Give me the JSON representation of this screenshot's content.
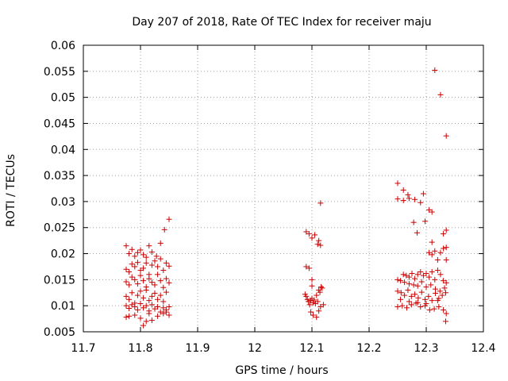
{
  "chart_data": {
    "type": "scatter",
    "title": "Day 207 of 2018, Rate Of TEC Index for receiver maju",
    "xlabel": "GPS time / hours",
    "ylabel": "ROTI / TECUs",
    "xlim": [
      11.7,
      12.4
    ],
    "ylim": [
      0.005,
      0.06
    ],
    "xticks": [
      11.7,
      11.8,
      11.9,
      12.0,
      12.1,
      12.2,
      12.3,
      12.4
    ],
    "xtick_labels": [
      "11.7",
      "11.8",
      "11.9",
      "12",
      "12.1",
      "12.2",
      "12.3",
      "12.4"
    ],
    "yticks": [
      0.005,
      0.01,
      0.015,
      0.02,
      0.025,
      0.03,
      0.035,
      0.04,
      0.045,
      0.05,
      0.055,
      0.06
    ],
    "ytick_labels": [
      "0.005",
      "0.01",
      "0.015",
      "0.02",
      "0.025",
      "0.03",
      "0.035",
      "0.04",
      "0.045",
      "0.05",
      "0.055",
      "0.06"
    ],
    "grid": true,
    "marker": "+",
    "marker_color": "#cc0000",
    "series": [
      {
        "name": "ROTI",
        "points": [
          [
            11.775,
            0.0215
          ],
          [
            11.78,
            0.02
          ],
          [
            11.785,
            0.0208
          ],
          [
            11.79,
            0.0195
          ],
          [
            11.795,
            0.0202
          ],
          [
            11.8,
            0.0207
          ],
          [
            11.805,
            0.0198
          ],
          [
            11.81,
            0.0193
          ],
          [
            11.815,
            0.0215
          ],
          [
            11.82,
            0.0203
          ],
          [
            11.828,
            0.0195
          ],
          [
            11.835,
            0.022
          ],
          [
            11.842,
            0.0246
          ],
          [
            11.85,
            0.0266
          ],
          [
            11.775,
            0.017
          ],
          [
            11.78,
            0.0165
          ],
          [
            11.785,
            0.018
          ],
          [
            11.79,
            0.0175
          ],
          [
            11.795,
            0.0183
          ],
          [
            11.8,
            0.0168
          ],
          [
            11.805,
            0.0172
          ],
          [
            11.81,
            0.0182
          ],
          [
            11.815,
            0.016
          ],
          [
            11.82,
            0.0178
          ],
          [
            11.825,
            0.0186
          ],
          [
            11.83,
            0.0175
          ],
          [
            11.835,
            0.019
          ],
          [
            11.84,
            0.0168
          ],
          [
            11.845,
            0.0182
          ],
          [
            11.85,
            0.0176
          ],
          [
            11.775,
            0.0146
          ],
          [
            11.78,
            0.014
          ],
          [
            11.785,
            0.0155
          ],
          [
            11.79,
            0.015
          ],
          [
            11.795,
            0.0142
          ],
          [
            11.8,
            0.0158
          ],
          [
            11.805,
            0.0148
          ],
          [
            11.81,
            0.0136
          ],
          [
            11.815,
            0.0152
          ],
          [
            11.82,
            0.0145
          ],
          [
            11.825,
            0.014
          ],
          [
            11.83,
            0.016
          ],
          [
            11.835,
            0.0148
          ],
          [
            11.84,
            0.0135
          ],
          [
            11.845,
            0.0152
          ],
          [
            11.85,
            0.0144
          ],
          [
            11.775,
            0.0118
          ],
          [
            11.78,
            0.0112
          ],
          [
            11.785,
            0.0125
          ],
          [
            11.79,
            0.0105
          ],
          [
            11.795,
            0.012
          ],
          [
            11.8,
            0.0128
          ],
          [
            11.805,
            0.0115
          ],
          [
            11.81,
            0.013
          ],
          [
            11.815,
            0.011
          ],
          [
            11.82,
            0.0118
          ],
          [
            11.825,
            0.0124
          ],
          [
            11.83,
            0.0112
          ],
          [
            11.835,
            0.012
          ],
          [
            11.84,
            0.0108
          ],
          [
            11.845,
            0.0126
          ],
          [
            11.775,
            0.01
          ],
          [
            11.78,
            0.0095
          ],
          [
            11.785,
            0.0102
          ],
          [
            11.79,
            0.0098
          ],
          [
            11.795,
            0.0092
          ],
          [
            11.8,
            0.0104
          ],
          [
            11.805,
            0.0096
          ],
          [
            11.81,
            0.01
          ],
          [
            11.815,
            0.009
          ],
          [
            11.82,
            0.0102
          ],
          [
            11.825,
            0.0094
          ],
          [
            11.83,
            0.0098
          ],
          [
            11.835,
            0.0088
          ],
          [
            11.84,
            0.0096
          ],
          [
            11.845,
            0.0092
          ],
          [
            11.85,
            0.0098
          ],
          [
            11.775,
            0.0078
          ],
          [
            11.78,
            0.008
          ],
          [
            11.79,
            0.0082
          ],
          [
            11.8,
            0.0076
          ],
          [
            11.805,
            0.0062
          ],
          [
            11.81,
            0.007
          ],
          [
            11.815,
            0.0085
          ],
          [
            11.82,
            0.0072
          ],
          [
            11.83,
            0.008
          ],
          [
            11.84,
            0.0085
          ],
          [
            11.845,
            0.0088
          ],
          [
            11.85,
            0.0082
          ],
          [
            12.09,
            0.0242
          ],
          [
            12.095,
            0.0238
          ],
          [
            12.1,
            0.023
          ],
          [
            12.105,
            0.0236
          ],
          [
            12.11,
            0.0218
          ],
          [
            12.112,
            0.0225
          ],
          [
            12.115,
            0.0216
          ],
          [
            12.115,
            0.0297
          ],
          [
            12.09,
            0.0175
          ],
          [
            12.095,
            0.0172
          ],
          [
            12.1,
            0.015
          ],
          [
            12.1,
            0.0138
          ],
          [
            12.088,
            0.0122
          ],
          [
            12.09,
            0.0118
          ],
          [
            12.092,
            0.0112
          ],
          [
            12.094,
            0.0108
          ],
          [
            12.096,
            0.0102
          ],
          [
            12.098,
            0.011
          ],
          [
            12.1,
            0.0114
          ],
          [
            12.102,
            0.0106
          ],
          [
            12.104,
            0.0111
          ],
          [
            12.106,
            0.0104
          ],
          [
            12.108,
            0.012
          ],
          [
            12.11,
            0.0108
          ],
          [
            12.112,
            0.013
          ],
          [
            12.114,
            0.0126
          ],
          [
            12.116,
            0.0136
          ],
          [
            12.118,
            0.0134
          ],
          [
            12.12,
            0.0102
          ],
          [
            12.115,
            0.0098
          ],
          [
            12.098,
            0.0088
          ],
          [
            12.102,
            0.0082
          ],
          [
            12.108,
            0.0078
          ],
          [
            12.112,
            0.009
          ],
          [
            12.25,
            0.0335
          ],
          [
            12.26,
            0.0322
          ],
          [
            12.268,
            0.0313
          ],
          [
            12.25,
            0.0305
          ],
          [
            12.26,
            0.0302
          ],
          [
            12.27,
            0.0306
          ],
          [
            12.28,
            0.0304
          ],
          [
            12.29,
            0.0298
          ],
          [
            12.295,
            0.0315
          ],
          [
            12.305,
            0.0284
          ],
          [
            12.31,
            0.028
          ],
          [
            12.315,
            0.0552
          ],
          [
            12.325,
            0.0505
          ],
          [
            12.335,
            0.0426
          ],
          [
            12.278,
            0.026
          ],
          [
            12.284,
            0.024
          ],
          [
            12.298,
            0.0262
          ],
          [
            12.33,
            0.0238
          ],
          [
            12.335,
            0.0245
          ],
          [
            12.31,
            0.0222
          ],
          [
            12.305,
            0.0202
          ],
          [
            12.31,
            0.0198
          ],
          [
            12.315,
            0.0205
          ],
          [
            12.325,
            0.0202
          ],
          [
            12.33,
            0.021
          ],
          [
            12.335,
            0.0212
          ],
          [
            12.32,
            0.0188
          ],
          [
            12.335,
            0.0188
          ],
          [
            12.26,
            0.016
          ],
          [
            12.265,
            0.0158
          ],
          [
            12.27,
            0.0155
          ],
          [
            12.275,
            0.0162
          ],
          [
            12.28,
            0.0152
          ],
          [
            12.285,
            0.016
          ],
          [
            12.29,
            0.0165
          ],
          [
            12.295,
            0.0158
          ],
          [
            12.3,
            0.0162
          ],
          [
            12.305,
            0.0155
          ],
          [
            12.31,
            0.0165
          ],
          [
            12.315,
            0.015
          ],
          [
            12.32,
            0.0168
          ],
          [
            12.325,
            0.016
          ],
          [
            12.33,
            0.0148
          ],
          [
            12.335,
            0.0144
          ],
          [
            12.25,
            0.015
          ],
          [
            12.255,
            0.0148
          ],
          [
            12.262,
            0.0145
          ],
          [
            12.27,
            0.0142
          ],
          [
            12.278,
            0.014
          ],
          [
            12.285,
            0.0138
          ],
          [
            12.292,
            0.0146
          ],
          [
            12.3,
            0.0136
          ],
          [
            12.308,
            0.014
          ],
          [
            12.316,
            0.0132
          ],
          [
            12.324,
            0.0128
          ],
          [
            12.332,
            0.0134
          ],
          [
            12.25,
            0.0128
          ],
          [
            12.256,
            0.0125
          ],
          [
            12.262,
            0.012
          ],
          [
            12.268,
            0.013
          ],
          [
            12.274,
            0.0118
          ],
          [
            12.28,
            0.0122
          ],
          [
            12.286,
            0.0115
          ],
          [
            12.292,
            0.0126
          ],
          [
            12.298,
            0.0112
          ],
          [
            12.304,
            0.0118
          ],
          [
            12.31,
            0.011
          ],
          [
            12.316,
            0.0124
          ],
          [
            12.322,
            0.0114
          ],
          [
            12.328,
            0.012
          ],
          [
            12.334,
            0.0125
          ],
          [
            12.25,
            0.0098
          ],
          [
            12.258,
            0.01
          ],
          [
            12.266,
            0.0096
          ],
          [
            12.274,
            0.0102
          ],
          [
            12.282,
            0.0105
          ],
          [
            12.29,
            0.0098
          ],
          [
            12.298,
            0.01
          ],
          [
            12.306,
            0.0092
          ],
          [
            12.314,
            0.0094
          ],
          [
            12.322,
            0.0098
          ],
          [
            12.33,
            0.0092
          ],
          [
            12.335,
            0.0085
          ],
          [
            12.334,
            0.007
          ],
          [
            12.255,
            0.0112
          ],
          [
            12.27,
            0.0108
          ],
          [
            12.285,
            0.0106
          ],
          [
            12.3,
            0.0104
          ],
          [
            12.32,
            0.011
          ]
        ]
      }
    ]
  }
}
